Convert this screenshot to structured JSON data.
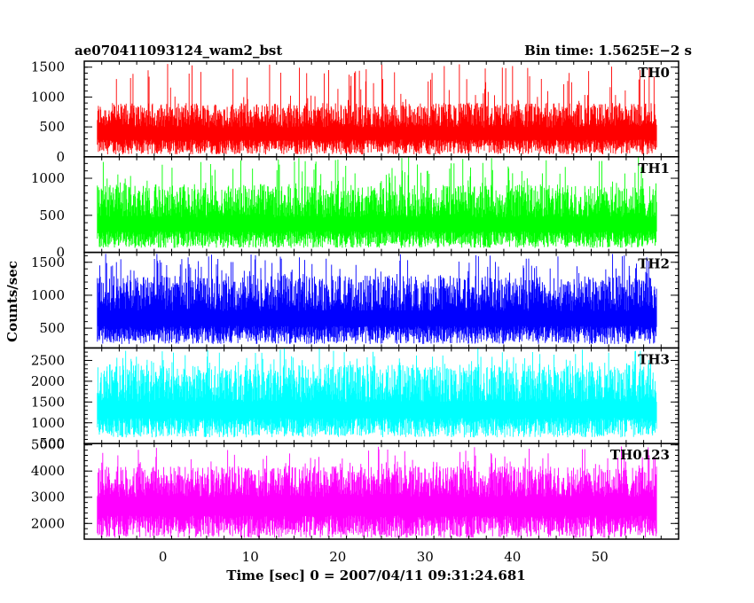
{
  "chart_data": {
    "type": "line",
    "title_left": "ae070411093124_wam2_bst",
    "title_right": "Bin time: 1.5625E−2 s",
    "xlabel": "Time [sec] 0 = 2007/04/11 09:31:24.681",
    "ylabel": "Counts/sec",
    "xlim": [
      -9,
      59
    ],
    "x_ticks": [
      0,
      10,
      20,
      30,
      40,
      50
    ],
    "x_tick_labels": [
      "0",
      "10",
      "20",
      "30",
      "40",
      "50"
    ],
    "x_data_range": [
      -7.5,
      56.5
    ],
    "grid": false,
    "panels": [
      {
        "name": "TH0",
        "color": "#ff0000",
        "ylim": [
          0,
          1600
        ],
        "y_ticks": [
          0,
          500,
          1000,
          1500
        ],
        "y_tick_labels": [
          "0",
          "500",
          "1000",
          "1500"
        ],
        "base": 40,
        "mean": 490,
        "p95": 900,
        "max": 1580
      },
      {
        "name": "TH1",
        "color": "#00ff00",
        "ylim": [
          0,
          1290
        ],
        "y_ticks": [
          0,
          500,
          1000
        ],
        "y_tick_labels": [
          "0",
          "500",
          "1000"
        ],
        "base": 60,
        "mean": 470,
        "p95": 920,
        "max": 1290
      },
      {
        "name": "TH2",
        "color": "#0000ff",
        "ylim": [
          200,
          1650
        ],
        "y_ticks": [
          500,
          1000,
          1500
        ],
        "y_tick_labels": [
          "500",
          "1000",
          "1500"
        ],
        "base": 260,
        "mean": 760,
        "p95": 1300,
        "max": 1650
      },
      {
        "name": "TH3",
        "color": "#00ffff",
        "ylim": [
          500,
          2800
        ],
        "y_ticks": [
          500,
          1000,
          1500,
          2000,
          2500
        ],
        "y_tick_labels": [
          "500",
          "1000",
          "1500",
          "2000",
          "2500"
        ],
        "base": 650,
        "mean": 1500,
        "p95": 2400,
        "max": 2800
      },
      {
        "name": "TH0123",
        "color": "#ff00ff",
        "ylim": [
          1400,
          5050
        ],
        "y_ticks": [
          2000,
          3000,
          4000,
          5000
        ],
        "y_tick_labels": [
          "2000",
          "3000",
          "4000",
          "5000"
        ],
        "base": 1450,
        "mean": 3000,
        "p95": 4200,
        "max": 4950
      }
    ]
  }
}
